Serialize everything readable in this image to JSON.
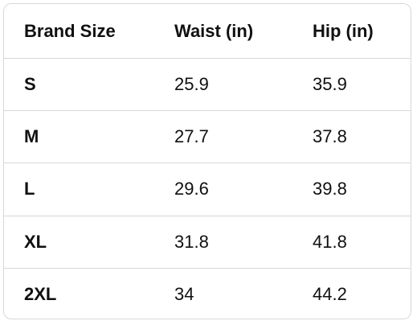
{
  "table": {
    "header": [
      "Brand Size",
      "Waist (in)",
      "Hip (in)"
    ],
    "rows": [
      [
        "S",
        25.9,
        35.9
      ],
      [
        "M",
        27.7,
        37.8
      ],
      [
        "L",
        29.6,
        39.8
      ],
      [
        "XL",
        31.8,
        41.8
      ],
      [
        "2XL",
        34,
        44.2
      ]
    ]
  }
}
